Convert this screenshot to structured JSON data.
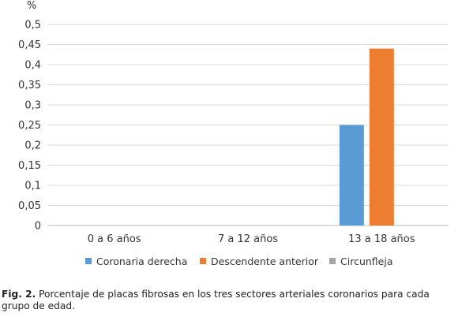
{
  "chart_data": {
    "type": "bar",
    "ylabel": "%",
    "ylim": [
      0,
      0.5
    ],
    "yticks": [
      "0",
      "0,05",
      "0,1",
      "0,15",
      "0,2",
      "0,25",
      "0,3",
      "0,35",
      "0,4",
      "0,45",
      "0,5"
    ],
    "categories": [
      "0 a 6 años",
      "7 a 12 años",
      "13 a 18 años"
    ],
    "series": [
      {
        "name": "Coronaria derecha",
        "color": "#5b9bd5",
        "values": [
          0,
          0,
          0.25
        ]
      },
      {
        "name": "Descendente anterior",
        "color": "#ed7d31",
        "values": [
          0,
          0,
          0.44
        ]
      },
      {
        "name": "Circunfleja",
        "color": "#a5a5a5",
        "values": [
          0,
          0,
          0
        ]
      }
    ],
    "grid": true,
    "legend": "bottom"
  },
  "caption": {
    "label": "Fig. 2.",
    "text": "Porcentaje de placas fibrosas en los tres sectores arteriales coronarios para cada grupo de edad."
  }
}
